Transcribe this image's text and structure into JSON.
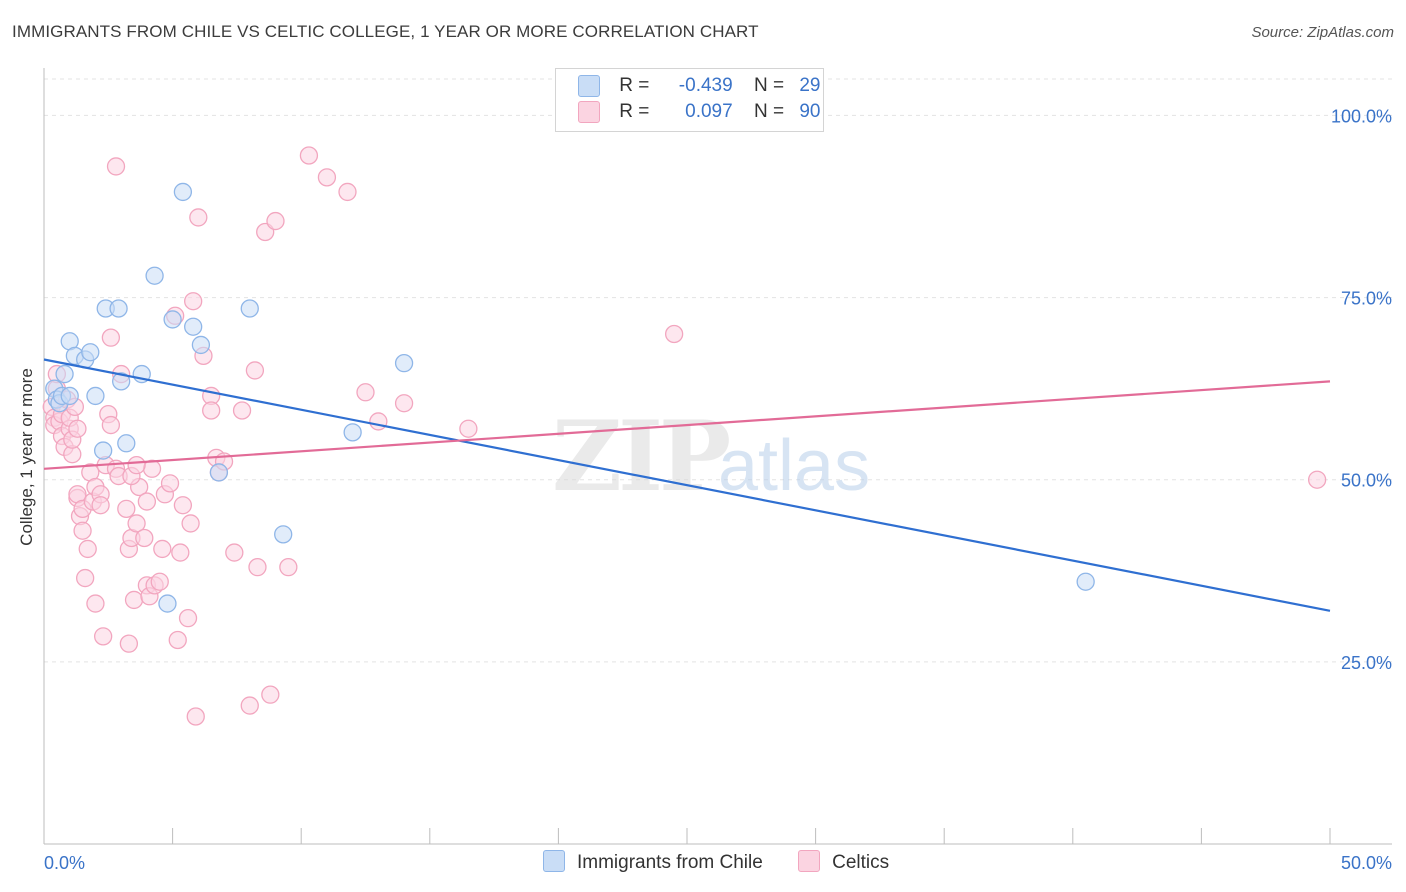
{
  "title": "IMMIGRANTS FROM CHILE VS CELTIC COLLEGE, 1 YEAR OR MORE CORRELATION CHART",
  "source": "Source: ZipAtlas.com",
  "watermark": {
    "zip": "ZIP",
    "atlas": "atlas"
  },
  "legend": {
    "rows": [
      {
        "r_label": "R =",
        "r_value": "-0.439",
        "n_label": "N =",
        "n_value": "29",
        "color": "#8fb6e8"
      },
      {
        "r_label": "R =",
        "r_value": "0.097",
        "n_label": "N =",
        "n_value": "90",
        "color": "#f2a6bf"
      }
    ]
  },
  "bottom_legend": [
    {
      "label": "Immigrants from Chile",
      "color": "#8fb6e8"
    },
    {
      "label": "Celtics",
      "color": "#f2a6bf"
    }
  ],
  "chart_data": {
    "type": "scatter",
    "title": "IMMIGRANTS FROM CHILE VS CELTIC COLLEGE, 1 YEAR OR MORE CORRELATION CHART",
    "xlabel": "",
    "ylabel": "College, 1 year or more",
    "xlim": [
      0,
      50
    ],
    "ylim": [
      0,
      105
    ],
    "x_tick_labels": [
      "0.0%",
      "50.0%"
    ],
    "y_ticks": [
      25,
      50,
      75,
      100
    ],
    "y_tick_labels": [
      "25.0%",
      "50.0%",
      "75.0%",
      "100.0%"
    ],
    "grid": true,
    "series": [
      {
        "name": "Immigrants from Chile",
        "color": "#8fb6e8",
        "line_color": "#2f6fd1",
        "trend": {
          "x": [
            0,
            50
          ],
          "y": [
            66.5,
            32.0
          ]
        },
        "points": [
          [
            0.4,
            62.5
          ],
          [
            0.5,
            61
          ],
          [
            0.6,
            60.5
          ],
          [
            0.7,
            61.5
          ],
          [
            0.8,
            64.5
          ],
          [
            1.0,
            69
          ],
          [
            1.0,
            61.5
          ],
          [
            1.2,
            67
          ],
          [
            1.6,
            66.5
          ],
          [
            1.8,
            67.5
          ],
          [
            2.0,
            61.5
          ],
          [
            2.3,
            54
          ],
          [
            2.4,
            73.5
          ],
          [
            2.9,
            73.5
          ],
          [
            3.0,
            63.5
          ],
          [
            3.2,
            55
          ],
          [
            3.8,
            64.5
          ],
          [
            4.3,
            78
          ],
          [
            4.8,
            33
          ],
          [
            5.0,
            72
          ],
          [
            5.4,
            89.5
          ],
          [
            5.8,
            71
          ],
          [
            6.1,
            68.5
          ],
          [
            6.8,
            51
          ],
          [
            8.0,
            73.5
          ],
          [
            9.3,
            42.5
          ],
          [
            12.0,
            56.5
          ],
          [
            14.0,
            66
          ],
          [
            40.5,
            36
          ]
        ]
      },
      {
        "name": "Celtics",
        "color": "#f2a6bf",
        "line_color": "#e26b97",
        "trend": {
          "x": [
            0,
            50
          ],
          "y": [
            51.5,
            63.5
          ]
        },
        "points": [
          [
            0.3,
            60
          ],
          [
            0.4,
            58.5
          ],
          [
            0.4,
            57.5
          ],
          [
            0.5,
            62.5
          ],
          [
            0.5,
            64.5
          ],
          [
            0.6,
            58
          ],
          [
            0.7,
            59
          ],
          [
            0.7,
            56
          ],
          [
            0.8,
            54.5
          ],
          [
            0.9,
            61
          ],
          [
            1.0,
            57
          ],
          [
            1.0,
            58.5
          ],
          [
            1.1,
            53.5
          ],
          [
            1.1,
            55.5
          ],
          [
            1.2,
            60
          ],
          [
            1.3,
            57
          ],
          [
            1.3,
            47.5
          ],
          [
            1.3,
            48
          ],
          [
            1.4,
            45
          ],
          [
            1.5,
            43
          ],
          [
            1.5,
            46
          ],
          [
            1.6,
            36.5
          ],
          [
            1.7,
            40.5
          ],
          [
            1.8,
            51
          ],
          [
            1.9,
            47
          ],
          [
            2.0,
            33
          ],
          [
            2.0,
            49
          ],
          [
            2.2,
            48
          ],
          [
            2.2,
            46.5
          ],
          [
            2.3,
            28.5
          ],
          [
            2.4,
            52
          ],
          [
            2.5,
            59
          ],
          [
            2.6,
            57.5
          ],
          [
            2.6,
            69.5
          ],
          [
            2.8,
            51.5
          ],
          [
            2.9,
            50.5
          ],
          [
            3.0,
            64.5
          ],
          [
            3.2,
            46
          ],
          [
            3.3,
            27.5
          ],
          [
            3.3,
            40.5
          ],
          [
            3.4,
            42
          ],
          [
            3.5,
            33.5
          ],
          [
            3.6,
            44
          ],
          [
            3.7,
            49
          ],
          [
            3.9,
            42
          ],
          [
            4.0,
            35.5
          ],
          [
            4.0,
            47
          ],
          [
            4.1,
            34
          ],
          [
            4.2,
            51.5
          ],
          [
            4.3,
            35.5
          ],
          [
            4.5,
            36
          ],
          [
            4.6,
            40.5
          ],
          [
            4.7,
            48
          ],
          [
            4.9,
            49.5
          ],
          [
            5.1,
            72.5
          ],
          [
            5.2,
            28
          ],
          [
            5.3,
            40
          ],
          [
            5.4,
            46.5
          ],
          [
            5.6,
            31
          ],
          [
            5.7,
            44
          ],
          [
            5.8,
            74.5
          ],
          [
            5.9,
            17.5
          ],
          [
            6.0,
            86
          ],
          [
            6.2,
            67
          ],
          [
            6.5,
            61.5
          ],
          [
            6.5,
            59.5
          ],
          [
            6.7,
            53
          ],
          [
            6.8,
            51
          ],
          [
            7.0,
            52.5
          ],
          [
            7.4,
            40
          ],
          [
            7.7,
            59.5
          ],
          [
            8.0,
            19
          ],
          [
            8.2,
            65
          ],
          [
            8.3,
            38
          ],
          [
            8.6,
            84
          ],
          [
            8.8,
            20.5
          ],
          [
            9.0,
            85.5
          ],
          [
            9.5,
            38
          ],
          [
            10.3,
            94.5
          ],
          [
            11.0,
            91.5
          ],
          [
            11.8,
            89.5
          ],
          [
            12.5,
            62
          ],
          [
            13.0,
            58
          ],
          [
            14.0,
            60.5
          ],
          [
            16.5,
            57
          ],
          [
            24.5,
            70
          ],
          [
            49.5,
            50
          ],
          [
            2.8,
            93
          ],
          [
            3.4,
            50.5
          ],
          [
            3.6,
            52
          ]
        ]
      }
    ]
  }
}
